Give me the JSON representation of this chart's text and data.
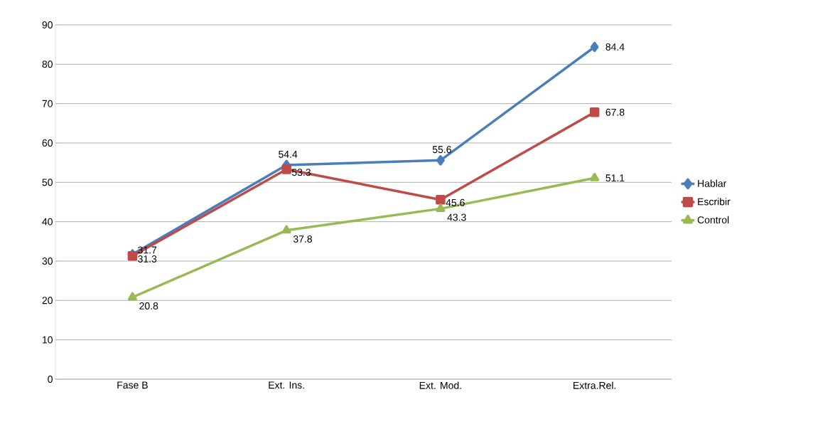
{
  "chart_data": {
    "type": "line",
    "categories": [
      "Fase B",
      "Ext. Ins.",
      "Ext. Mod.",
      "Extra.Rel."
    ],
    "series": [
      {
        "name": "Hablar",
        "color": "#4a7ebb",
        "marker": "diamond",
        "values": [
          31.7,
          54.4,
          55.6,
          84.4
        ]
      },
      {
        "name": "Escribir",
        "color": "#be4b48",
        "marker": "square",
        "values": [
          31.3,
          53.3,
          45.6,
          67.8
        ]
      },
      {
        "name": "Control",
        "color": "#98b954",
        "marker": "triangle",
        "values": [
          20.8,
          37.8,
          43.3,
          51.1
        ]
      }
    ],
    "ylim": [
      0,
      90
    ],
    "yticks": [
      0,
      10,
      20,
      30,
      40,
      50,
      60,
      70,
      80,
      90
    ],
    "grid": "y",
    "legend": "right",
    "data_labels": true
  }
}
